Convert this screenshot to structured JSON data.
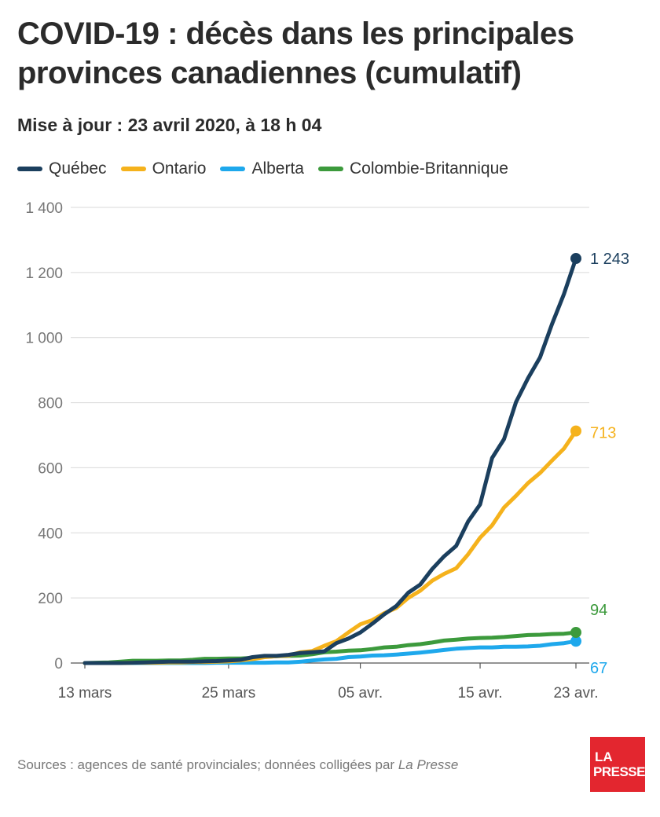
{
  "title": "COVID-19 : décès dans les principales provinces canadiennes (cumulatif)",
  "subtitle": "Mise à jour : 23 avril 2020, à 18 h 04",
  "source": {
    "text": "Sources : agences de santé provinciales; données colligées par ",
    "italic": "La Presse"
  },
  "logo": {
    "line1": "LA",
    "line2": "PRESSE"
  },
  "chart_data": {
    "type": "line",
    "title": "COVID-19 : décès dans les principales provinces canadiennes (cumulatif)",
    "xlabel": "",
    "ylabel": "",
    "ylim": [
      0,
      1400
    ],
    "yticks": [
      0,
      200,
      400,
      600,
      800,
      1000,
      1200,
      1400
    ],
    "ytick_labels": [
      "0",
      "200",
      "400",
      "600",
      "800",
      "1 000",
      "1 200",
      "1 400"
    ],
    "xlim": [
      "2020-03-13",
      "2020-04-23"
    ],
    "x_ticks": [
      {
        "date": "2020-03-13",
        "label": "13 mars"
      },
      {
        "date": "2020-03-25",
        "label": "25 mars"
      },
      {
        "date": "2020-04-05",
        "label": "05 avr."
      },
      {
        "date": "2020-04-15",
        "label": "15 avr."
      },
      {
        "date": "2020-04-23",
        "label": "23 avr."
      }
    ],
    "grid": true,
    "legend": "top",
    "x": [
      "2020-03-13",
      "2020-03-14",
      "2020-03-15",
      "2020-03-16",
      "2020-03-17",
      "2020-03-18",
      "2020-03-19",
      "2020-03-20",
      "2020-03-21",
      "2020-03-22",
      "2020-03-23",
      "2020-03-24",
      "2020-03-25",
      "2020-03-26",
      "2020-03-27",
      "2020-03-28",
      "2020-03-29",
      "2020-03-30",
      "2020-03-31",
      "2020-04-01",
      "2020-04-02",
      "2020-04-03",
      "2020-04-04",
      "2020-04-05",
      "2020-04-06",
      "2020-04-07",
      "2020-04-08",
      "2020-04-09",
      "2020-04-10",
      "2020-04-11",
      "2020-04-12",
      "2020-04-13",
      "2020-04-14",
      "2020-04-15",
      "2020-04-16",
      "2020-04-17",
      "2020-04-18",
      "2020-04-19",
      "2020-04-20",
      "2020-04-21",
      "2020-04-22",
      "2020-04-23"
    ],
    "series": [
      {
        "name": "Québec",
        "color": "#1b3f5e",
        "end_label": "1 243",
        "values": [
          0,
          0,
          0,
          0,
          1,
          2,
          3,
          4,
          4,
          4,
          5,
          6,
          8,
          10,
          18,
          22,
          22,
          25,
          31,
          33,
          36,
          61,
          75,
          94,
          121,
          150,
          175,
          216,
          241,
          289,
          328,
          360,
          435,
          487,
          630,
          688,
          802,
          875,
          939,
          1041,
          1134,
          1243
        ]
      },
      {
        "name": "Ontario",
        "color": "#f5b21c",
        "end_label": "713",
        "values": [
          0,
          0,
          0,
          0,
          1,
          1,
          1,
          2,
          2,
          3,
          3,
          4,
          5,
          8,
          12,
          18,
          21,
          23,
          33,
          37,
          53,
          67,
          94,
          119,
          132,
          153,
          169,
          200,
          222,
          253,
          274,
          291,
          334,
          385,
          423,
          478,
          514,
          553,
          584,
          622,
          659,
          713
        ]
      },
      {
        "name": "Alberta",
        "color": "#1ea8ec",
        "end_label": "67",
        "values": [
          0,
          0,
          0,
          0,
          0,
          0,
          0,
          0,
          0,
          0,
          0,
          1,
          1,
          1,
          1,
          1,
          2,
          2,
          4,
          8,
          11,
          13,
          18,
          20,
          23,
          24,
          26,
          29,
          32,
          36,
          40,
          44,
          46,
          48,
          48,
          50,
          50,
          51,
          53,
          58,
          61,
          67
        ]
      },
      {
        "name": "Colombie-Britannique",
        "color": "#3c9a3c",
        "end_label": "94",
        "values": [
          0,
          1,
          2,
          4,
          7,
          7,
          7,
          8,
          8,
          10,
          13,
          13,
          14,
          14,
          16,
          19,
          21,
          22,
          23,
          27,
          33,
          35,
          38,
          39,
          43,
          48,
          50,
          55,
          58,
          63,
          69,
          72,
          75,
          77,
          78,
          80,
          83,
          86,
          87,
          89,
          90,
          94
        ]
      }
    ]
  }
}
